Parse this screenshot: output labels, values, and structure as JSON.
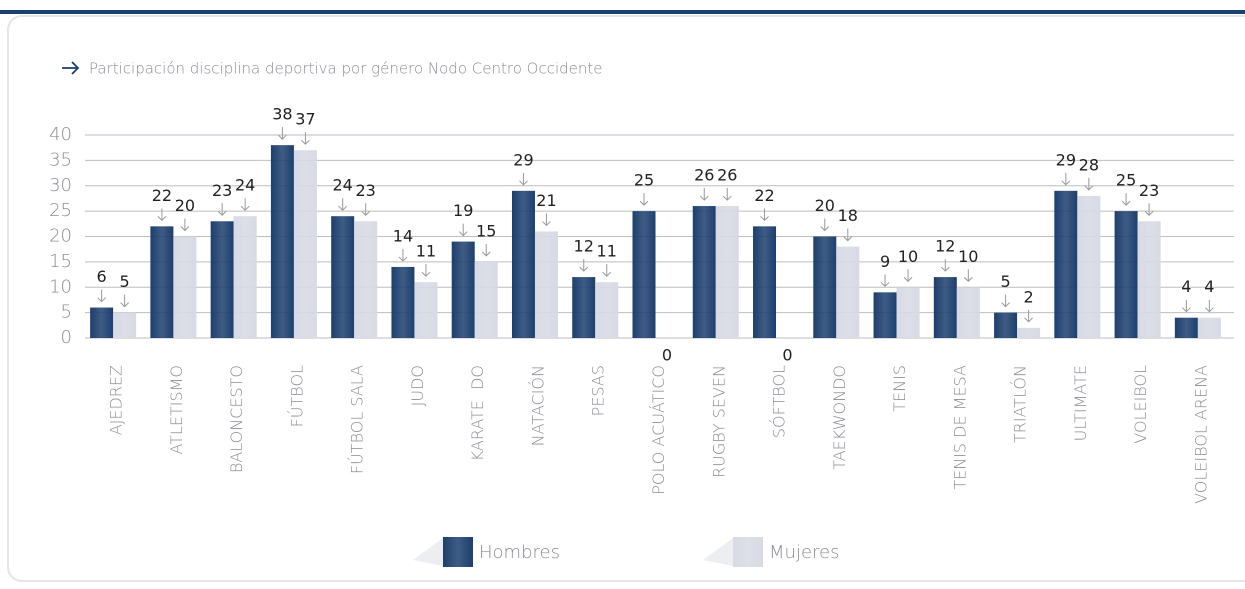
{
  "chart_data": {
    "type": "bar",
    "subtitle": "Participación disciplina deportiva por género Nodo Centro Occidente",
    "categories": [
      "AJEDREZ",
      "ATLETISMO",
      "BALONCESTO",
      "FÚTBOL",
      "FÚTBOL SALA",
      "JUDO",
      "KARATE  DO",
      "NATACIÓN",
      "PESAS",
      "POLO ACUÁTICO",
      "RUGBY SEVEN",
      "SÓFTBOL",
      "TAEKWONDO",
      "TENIS",
      "TENIS DE MESA",
      "TRIATLÓN",
      "ULTIMATE",
      "VOLEIBOL",
      "VOLEIBOL ARENA"
    ],
    "series": [
      {
        "name": "Hombres",
        "color": "#1d3f6e",
        "values": [
          6,
          22,
          23,
          38,
          24,
          14,
          19,
          29,
          12,
          25,
          26,
          22,
          20,
          9,
          12,
          5,
          29,
          25,
          4
        ]
      },
      {
        "name": "Mujeres",
        "color": "#d7d9e4",
        "values": [
          5,
          20,
          24,
          37,
          23,
          11,
          15,
          21,
          11,
          0,
          26,
          0,
          18,
          10,
          10,
          2,
          28,
          23,
          4
        ]
      }
    ],
    "ylim": [
      0,
      40
    ],
    "yticks": [
      0,
      5,
      10,
      15,
      20,
      25,
      30,
      35,
      40
    ],
    "grid": true,
    "legend": "bottom"
  }
}
